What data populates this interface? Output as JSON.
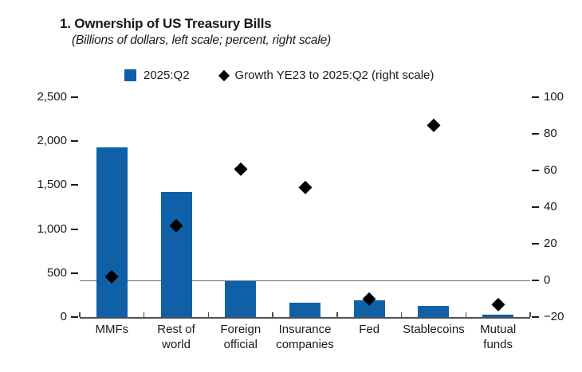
{
  "figure": {
    "title": "1. Ownership of US Treasury Bills",
    "subtitle": "(Billions of dollars, left scale; percent, right scale)"
  },
  "legend": {
    "bar_label": "2025:Q2",
    "diamond_label": "Growth YE23 to 2025:Q2 (right scale)"
  },
  "colors": {
    "bar": "#1060a8",
    "marker": "#000000",
    "axis": "#4f5052",
    "zero_line": "#6d6e71",
    "text": "#1a1a1a"
  },
  "chart_data": {
    "type": "bar",
    "title": "1. Ownership of US Treasury Bills",
    "subtitle": "(Billions of dollars, left scale; percent, right scale)",
    "categories": [
      "MMFs",
      "Rest of world",
      "Foreign official",
      "Insurance companies",
      "Fed",
      "Stablecoins",
      "Mutual funds"
    ],
    "category_label_lines": [
      [
        "MMFs"
      ],
      [
        "Rest of",
        "world"
      ],
      [
        "Foreign",
        "official"
      ],
      [
        "Insurance",
        "companies"
      ],
      [
        "Fed"
      ],
      [
        "Stablecoins"
      ],
      [
        "Mutual",
        "funds"
      ]
    ],
    "series": [
      {
        "name": "2025:Q2",
        "type": "bar",
        "axis": "left",
        "values": [
          1925,
          1420,
          410,
          160,
          190,
          125,
          25
        ]
      },
      {
        "name": "Growth YE23 to 2025:Q2 (right scale)",
        "type": "scatter-diamond",
        "axis": "right",
        "values": [
          2,
          30,
          61,
          51,
          -10,
          85,
          -13
        ]
      }
    ],
    "left_axis": {
      "label": "Billions of dollars",
      "min": 0,
      "max": 2500,
      "ticks": [
        0,
        500,
        1000,
        1500,
        2000,
        2500
      ],
      "tick_labels": [
        "0",
        "500",
        "1,000",
        "1,500",
        "2,000",
        "2,500"
      ]
    },
    "right_axis": {
      "label": "Percent",
      "min": -20,
      "max": 100,
      "ticks": [
        -20,
        0,
        20,
        40,
        60,
        80,
        100
      ],
      "tick_labels": [
        "−20",
        "0",
        "20",
        "40",
        "60",
        "80",
        "100"
      ]
    },
    "zero_line_right_axis": 0,
    "legend_position": "top",
    "grid": false
  }
}
